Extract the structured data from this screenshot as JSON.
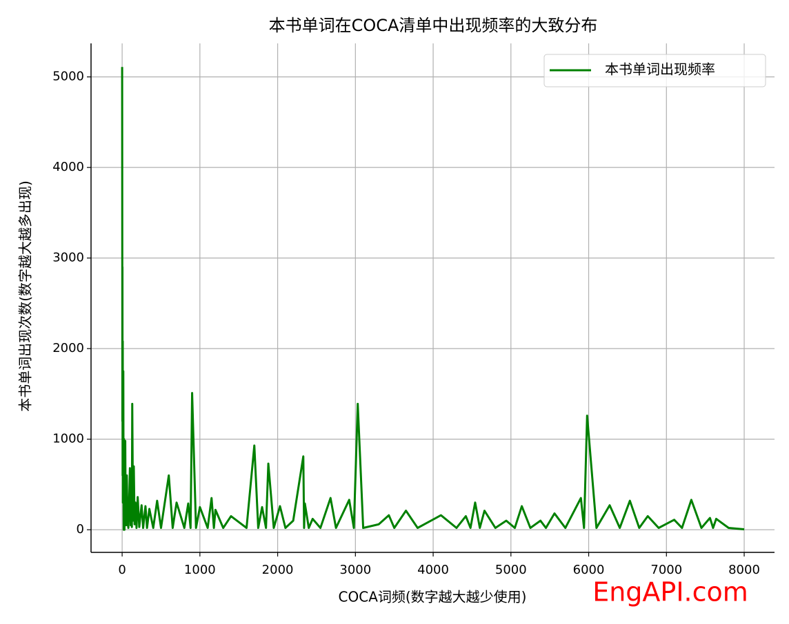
{
  "chart_data": {
    "type": "line",
    "title": "本书单词在COCA清单中出现频率的大致分布",
    "xlabel": "COCA词频(数字越大越少使用)",
    "ylabel": "本书单词出现次数(数字越大越多出现)",
    "watermark": "EngAPI.com",
    "x": [
      0,
      1,
      2,
      3,
      4,
      5,
      6,
      8,
      9,
      12,
      15,
      18,
      20,
      22,
      25,
      28,
      30,
      35,
      40,
      45,
      50,
      55,
      60,
      70,
      80,
      90,
      100,
      110,
      120,
      125,
      130,
      140,
      150,
      160,
      170,
      185,
      200,
      220,
      250,
      270,
      300,
      320,
      350,
      400,
      450,
      500,
      600,
      650,
      700,
      800,
      850,
      880,
      900,
      950,
      1000,
      1100,
      1150,
      1180,
      1200,
      1300,
      1400,
      1600,
      1700,
      1750,
      1800,
      1850,
      1880,
      1950,
      2030,
      2100,
      2200,
      2330,
      2340,
      2350,
      2400,
      2450,
      2550,
      2680,
      2750,
      2920,
      2980,
      3030,
      3100,
      3300,
      3430,
      3500,
      3650,
      3800,
      4100,
      4300,
      4420,
      4480,
      4540,
      4600,
      4660,
      4800,
      4940,
      5050,
      5140,
      5250,
      5380,
      5450,
      5560,
      5700,
      5900,
      5940,
      5980,
      6100,
      6270,
      6400,
      6530,
      6650,
      6760,
      6900,
      7100,
      7200,
      7320,
      7450,
      7560,
      7600,
      7640,
      7800,
      8000
    ],
    "series": [
      {
        "name": "本书单词出现频率",
        "color": "#008000",
        "values": [
          5110,
          4000,
          2900,
          1200,
          2900,
          1400,
          600,
          2080,
          300,
          1000,
          1750,
          400,
          0,
          600,
          1000,
          200,
          0,
          200,
          980,
          100,
          400,
          50,
          600,
          100,
          20,
          300,
          680,
          50,
          200,
          30,
          1390,
          100,
          700,
          60,
          300,
          20,
          360,
          30,
          270,
          20,
          260,
          20,
          230,
          20,
          320,
          20,
          600,
          20,
          300,
          20,
          290,
          20,
          1510,
          20,
          250,
          20,
          350,
          20,
          220,
          20,
          150,
          20,
          930,
          20,
          250,
          20,
          730,
          20,
          260,
          20,
          100,
          810,
          20,
          290,
          20,
          120,
          20,
          350,
          20,
          330,
          20,
          1390,
          20,
          60,
          160,
          20,
          210,
          20,
          160,
          20,
          150,
          20,
          300,
          20,
          210,
          20,
          100,
          20,
          260,
          20,
          100,
          20,
          180,
          20,
          350,
          20,
          1260,
          20,
          270,
          20,
          320,
          20,
          150,
          20,
          110,
          20,
          330,
          20,
          130,
          20,
          120,
          20,
          5
        ]
      }
    ],
    "xlim": [
      -400,
      8390
    ],
    "ylim": [
      -250,
      5370
    ],
    "xticks": [
      0,
      1000,
      2000,
      3000,
      4000,
      5000,
      6000,
      7000,
      8000
    ],
    "yticks": [
      0,
      1000,
      2000,
      3000,
      4000,
      5000
    ],
    "grid": true,
    "legend": "upper right"
  }
}
